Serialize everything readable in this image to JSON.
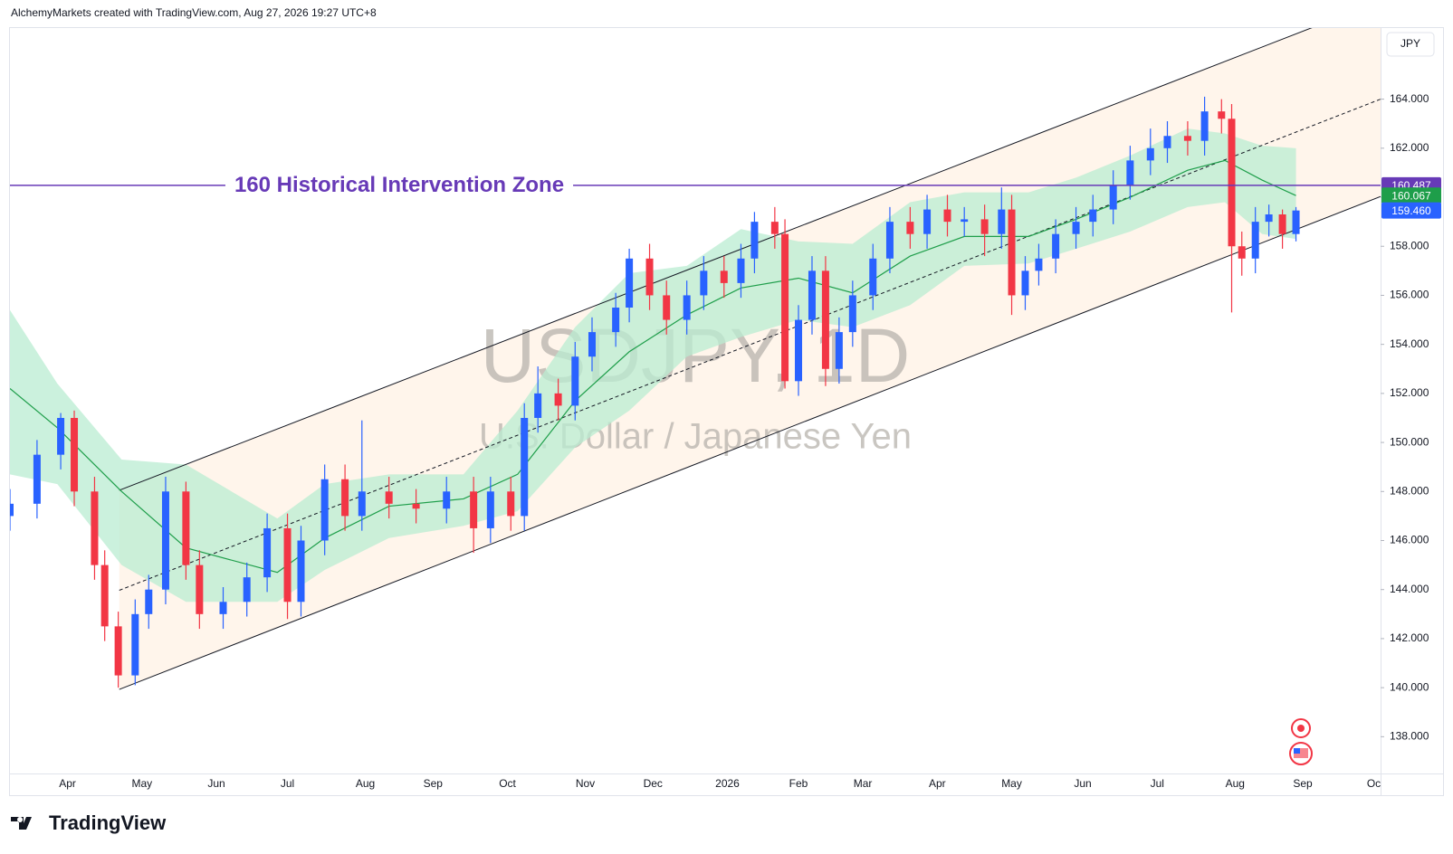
{
  "header": "AlchemyMarkets created with TradingView.com, Aug 27, 2026 19:27 UTC+8",
  "brand": "TradingView",
  "chart_data": {
    "type": "candlestick",
    "currency": "JPY",
    "watermark": {
      "symbol": "USDJPY, 1D",
      "description": "U.S. Dollar / Japanese Yen"
    },
    "up_color": "#2962ff",
    "down_color": "#f23645",
    "x": [
      0,
      8,
      15,
      19,
      25,
      28,
      32,
      37,
      41,
      46,
      52,
      56,
      63,
      70,
      76,
      82,
      86,
      93,
      99,
      104,
      112,
      120,
      129,
      137,
      142,
      148,
      152,
      156,
      162,
      167,
      172,
      179,
      183,
      189,
      194,
      200,
      205,
      211,
      216,
      220,
      226,
      229,
      233,
      237,
      241,
      245,
      249,
      255,
      260,
      266,
      271,
      277,
      282,
      288,
      293,
      296,
      300,
      304,
      309,
      315,
      320,
      326,
      331,
      337,
      342,
      348,
      353,
      358,
      361,
      364,
      368,
      372,
      376,
      380
    ],
    "open": [
      147.0,
      147.5,
      149.5,
      151.0,
      148.0,
      145.0,
      142.5,
      140.5,
      143.0,
      144.0,
      148.0,
      145.0,
      143.0,
      143.5,
      144.5,
      146.5,
      143.5,
      146.0,
      148.5,
      147.0,
      148.0,
      147.5,
      147.3,
      148.0,
      146.5,
      148.0,
      147.0,
      151.0,
      152.0,
      151.5,
      153.5,
      154.5,
      155.5,
      157.5,
      156.0,
      155.0,
      156.0,
      157.0,
      156.5,
      157.5,
      159.0,
      158.5,
      152.5,
      155.0,
      157.0,
      153.0,
      154.5,
      156.0,
      157.5,
      159.0,
      158.5,
      159.5,
      159.0,
      159.1,
      158.5,
      159.5,
      156.0,
      157.0,
      157.5,
      158.5,
      159.0,
      159.5,
      160.5,
      161.5,
      162.0,
      162.5,
      162.3,
      163.5,
      163.2,
      158.0,
      157.5,
      159.0,
      159.3,
      158.5
    ],
    "high": [
      148.1,
      150.1,
      151.2,
      151.3,
      148.6,
      145.6,
      143.1,
      143.6,
      144.6,
      148.6,
      148.4,
      145.6,
      144.1,
      145.1,
      147.1,
      147.1,
      146.6,
      149.1,
      149.1,
      150.9,
      148.6,
      148.1,
      148.6,
      148.6,
      148.6,
      148.6,
      151.6,
      153.1,
      152.6,
      154.1,
      155.1,
      156.1,
      157.9,
      158.1,
      156.6,
      156.6,
      157.6,
      157.6,
      158.1,
      159.4,
      159.6,
      159.1,
      155.6,
      157.6,
      157.6,
      155.1,
      156.6,
      158.1,
      159.6,
      159.6,
      160.1,
      160.1,
      159.6,
      159.7,
      160.4,
      160.1,
      157.6,
      158.1,
      159.1,
      159.6,
      160.1,
      161.1,
      162.1,
      162.8,
      163.1,
      163.1,
      164.1,
      164.0,
      163.8,
      158.6,
      159.6,
      159.7,
      159.5,
      159.6
    ],
    "low": [
      146.4,
      146.9,
      148.9,
      147.4,
      144.4,
      141.9,
      140.0,
      140.1,
      142.4,
      143.4,
      144.4,
      142.4,
      142.4,
      142.9,
      143.9,
      142.8,
      142.9,
      145.4,
      146.4,
      146.4,
      146.9,
      146.7,
      146.7,
      145.5,
      145.9,
      146.4,
      146.4,
      150.4,
      150.9,
      150.9,
      152.9,
      153.9,
      154.9,
      155.4,
      154.4,
      154.4,
      155.4,
      155.9,
      155.9,
      156.9,
      157.9,
      152.2,
      151.9,
      154.4,
      152.3,
      152.4,
      153.9,
      155.4,
      156.9,
      157.9,
      157.9,
      158.4,
      158.4,
      157.6,
      157.9,
      155.2,
      155.4,
      156.4,
      156.9,
      157.9,
      158.4,
      158.9,
      159.9,
      160.9,
      161.4,
      161.7,
      161.7,
      162.6,
      155.3,
      156.8,
      156.9,
      158.4,
      157.9,
      158.2
    ],
    "close": [
      147.5,
      149.5,
      151.0,
      148.0,
      145.0,
      142.5,
      140.5,
      143.0,
      144.0,
      148.0,
      145.0,
      143.0,
      143.5,
      144.5,
      146.5,
      143.5,
      146.0,
      148.5,
      147.0,
      148.0,
      147.5,
      147.3,
      148.0,
      146.5,
      148.0,
      147.0,
      151.0,
      152.0,
      151.5,
      153.5,
      154.5,
      155.5,
      157.5,
      156.0,
      155.0,
      156.0,
      157.0,
      156.5,
      157.5,
      159.0,
      158.5,
      152.5,
      155.0,
      157.0,
      153.0,
      154.5,
      156.0,
      157.5,
      159.0,
      158.5,
      159.5,
      159.0,
      159.1,
      158.5,
      159.5,
      156.0,
      157.0,
      157.5,
      158.5,
      159.0,
      159.5,
      160.5,
      161.5,
      162.0,
      162.5,
      162.3,
      163.5,
      163.2,
      158.0,
      157.5,
      159.0,
      159.3,
      158.5,
      159.46
    ],
    "ma": {
      "color": "#1e9e4a",
      "x": [
        0,
        14,
        33,
        52,
        79,
        93,
        112,
        134,
        150,
        167,
        183,
        200,
        216,
        233,
        249,
        266,
        282,
        301,
        315,
        331,
        348,
        359,
        370,
        380
      ],
      "values": [
        152.2,
        150.6,
        148.0,
        145.7,
        144.7,
        146.1,
        147.4,
        147.7,
        148.7,
        151.7,
        153.7,
        155.2,
        156.3,
        156.7,
        156.1,
        157.6,
        158.4,
        158.4,
        159.1,
        160.0,
        161.1,
        161.5,
        160.7,
        160.067
      ]
    },
    "band": {
      "color": "#b9ecd2",
      "x": [
        0,
        14,
        33,
        52,
        79,
        93,
        112,
        134,
        150,
        167,
        183,
        200,
        216,
        233,
        249,
        266,
        282,
        301,
        315,
        331,
        348,
        359,
        370,
        380
      ],
      "upper": [
        155.4,
        152.4,
        149.3,
        149.1,
        146.9,
        148.3,
        148.7,
        148.7,
        151.3,
        154.7,
        156.9,
        157.2,
        158.7,
        158.2,
        158.1,
        159.8,
        160.2,
        160.2,
        160.8,
        161.7,
        162.8,
        162.6,
        162.1,
        162.0
      ],
      "lower": [
        148.7,
        148.3,
        145.0,
        143.5,
        143.5,
        144.8,
        146.1,
        146.6,
        147.2,
        149.8,
        151.3,
        153.5,
        154.3,
        155.0,
        154.7,
        155.6,
        157.2,
        157.3,
        157.9,
        158.6,
        159.6,
        159.8,
        158.5,
        158.3
      ]
    },
    "horizontal_line": {
      "label": "160 Historical Intervention Zone",
      "value": 160.487,
      "color": "#673ab7"
    },
    "price_tag": {
      "value": 159.46,
      "label": "159.460",
      "color": "#2962ff"
    },
    "ylim": [
      136.5,
      166.9
    ],
    "yticks": [
      {
        "value": 138,
        "label": "138.000"
      },
      {
        "value": 140,
        "label": "140.000"
      },
      {
        "value": 142,
        "label": "142.000"
      },
      {
        "value": 144,
        "label": "144.000"
      },
      {
        "value": 146,
        "label": "146.000"
      },
      {
        "value": 148,
        "label": "148.000"
      },
      {
        "value": 150,
        "label": "150.000"
      },
      {
        "value": 152,
        "label": "152.000"
      },
      {
        "value": 154,
        "label": "154.000"
      },
      {
        "value": 156,
        "label": "156.000"
      },
      {
        "value": 158,
        "label": "158.000"
      },
      {
        "value": 160,
        "label": "160.000"
      },
      {
        "value": 162,
        "label": "162.000"
      },
      {
        "value": 164,
        "label": "164.000"
      }
    ],
    "xlim": [
      0,
      405
    ],
    "xticks": [
      {
        "value": 17,
        "label": "Apr"
      },
      {
        "value": 39,
        "label": "May"
      },
      {
        "value": 61,
        "label": "Jun"
      },
      {
        "value": 82,
        "label": "Jul"
      },
      {
        "value": 105,
        "label": "Aug"
      },
      {
        "value": 125,
        "label": "Sep"
      },
      {
        "value": 147,
        "label": "Oct"
      },
      {
        "value": 170,
        "label": "Nov"
      },
      {
        "value": 190,
        "label": "Dec"
      },
      {
        "value": 212,
        "label": "2026"
      },
      {
        "value": 233,
        "label": "Feb"
      },
      {
        "value": 252,
        "label": "Mar"
      },
      {
        "value": 274,
        "label": "Apr"
      },
      {
        "value": 296,
        "label": "May"
      },
      {
        "value": 317,
        "label": "Jun"
      },
      {
        "value": 339,
        "label": "Jul"
      },
      {
        "value": 362,
        "label": "Aug"
      },
      {
        "value": 382,
        "label": "Sep"
      },
      {
        "value": 403,
        "label": "Oc"
      }
    ]
  }
}
